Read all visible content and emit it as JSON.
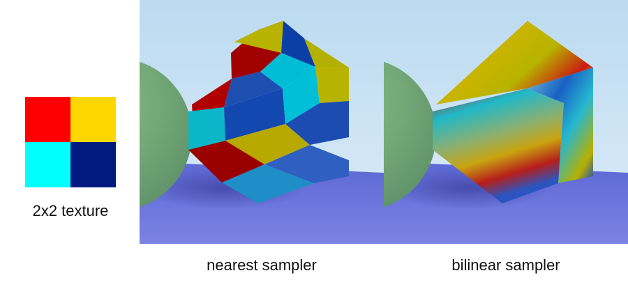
{
  "texture": {
    "caption": "2x2 texture",
    "texels": [
      {
        "color": "#ff0000"
      },
      {
        "color": "#ffd700"
      },
      {
        "color": "#00ffff"
      },
      {
        "color": "#001a80"
      }
    ]
  },
  "panels": [
    {
      "caption": "nearest sampler",
      "sampler": "nearest"
    },
    {
      "caption": "bilinear sampler",
      "sampler": "bilinear"
    }
  ],
  "colors": {
    "sky_top": "#c4dff2",
    "sky_bottom": "#d8ecf9",
    "floor": "#5a66d8",
    "sphere": "#7fb67a"
  }
}
